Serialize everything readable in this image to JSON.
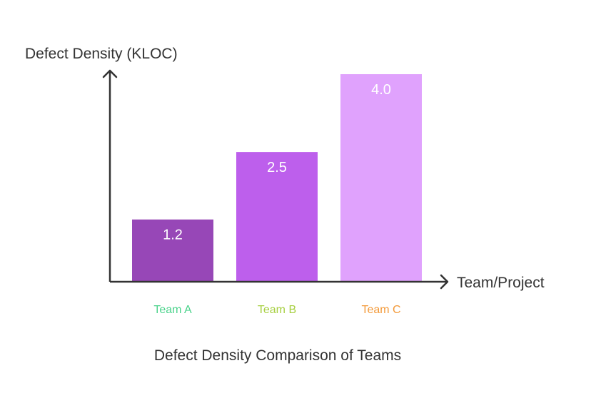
{
  "chart_data": {
    "type": "bar",
    "title": "Defect Density Comparison of Teams",
    "ylabel": "Defect Density (KLOC)",
    "xlabel": "Team/Project",
    "categories": [
      "Team A",
      "Team B",
      "Team C"
    ],
    "values": [
      1.2,
      2.5,
      4.0
    ],
    "value_labels": [
      "1.2",
      "2.5",
      "4.0"
    ],
    "bar_colors": [
      "#9747b7",
      "#bd5fec",
      "#e0a2fd"
    ],
    "category_label_colors": [
      "#4cd38c",
      "#a6cf3f",
      "#f39a3a"
    ],
    "ylim": [
      0,
      4.0
    ],
    "grid": false,
    "legend": "none"
  }
}
